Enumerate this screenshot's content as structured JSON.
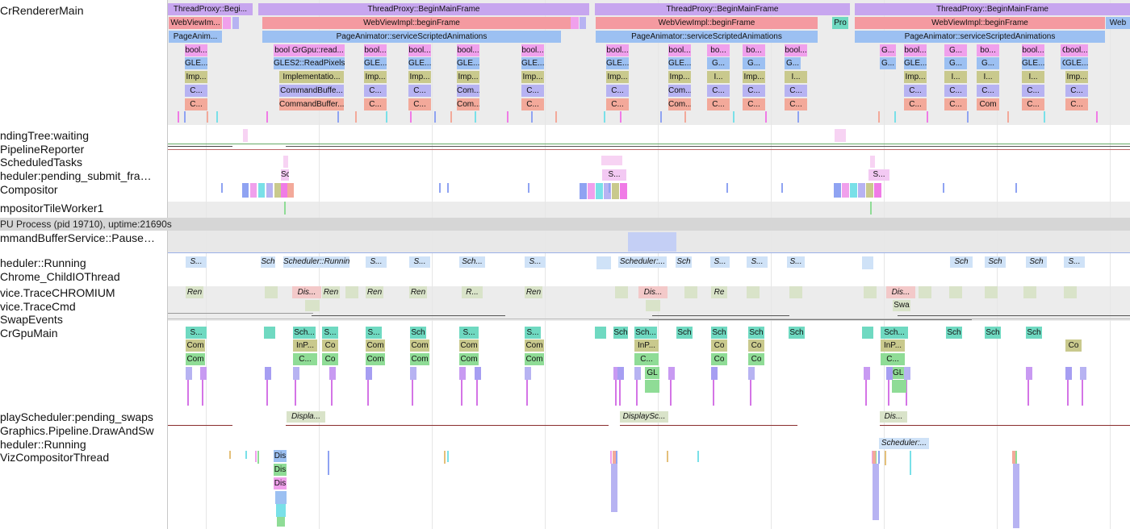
{
  "renderer_labels": [
    "CrRendererMain",
    "ndingTree:waiting",
    "PipelineReporter",
    "ScheduledTasks",
    "heduler:pending_submit_fra…",
    "Compositor",
    "mpositorTileWorker1"
  ],
  "gpu_process_header": "PU Process (pid 19710), uptime:21690s",
  "gpu_labels": [
    "mmandBufferService::Pause…",
    "heduler::Running",
    "Chrome_ChildIOThread",
    "vice.TraceCHROMIUM",
    "vice.TraceCmd",
    "SwapEvents",
    "CrGpuMain",
    "playScheduler:pending_swaps",
    "Graphics.Pipeline.DrawAndSw",
    "heduler::Running",
    "VizCompositorThread"
  ],
  "slices": {
    "main_top": [
      "ThreadProxy::Begi...",
      "ThreadProxy::BeginMainFrame",
      "ThreadProxy::BeginMainFrame",
      "ThreadProxy::BeginMainFrame"
    ],
    "webview": [
      "WebViewIm...",
      "WebViewImpl::beginFrame",
      "WebViewImpl::beginFrame",
      "Pro",
      "WebViewImpl::beginFrame",
      "Web"
    ],
    "animator": [
      "PageAnim...",
      "PageAnimator::serviceScriptedAnimations",
      "PageAnimator::serviceScriptedAnimations",
      "PageAnimator::serviceScriptedAnimations"
    ],
    "row4": [
      "bool...",
      "bool GrGpu::read...",
      "bool...",
      "bool...",
      "bool...",
      "bool...",
      "bool...",
      "bool...",
      "bo...",
      "bo...",
      "bool...",
      "G...",
      "bool...",
      "G...",
      "bo...",
      "bool...",
      "G...",
      "bool..."
    ],
    "row5": [
      "GLE...",
      "GLES2::ReadPixels",
      "GLE...",
      "GLE...",
      "GLE...",
      "GLE...",
      "GLE...",
      "GLE...",
      "G...",
      "G...",
      "G...",
      "G...",
      "GLE...",
      "G...",
      "G...",
      "GLE...",
      "G...",
      "GLE..."
    ],
    "row6": [
      "Imp...",
      "Implementatio...",
      "Imp...",
      "Imp...",
      "Imp...",
      "Imp...",
      "Imp...",
      "Imp...",
      "I...",
      "Imp...",
      "I...",
      "Imp...",
      "I...",
      "I...",
      "I...",
      "Imp..."
    ],
    "row7": [
      "C...",
      "CommandBuffe...",
      "C...",
      "C...",
      "Com...",
      "C...",
      "C...",
      "Com...",
      "C...",
      "C...",
      "C...",
      "C...",
      "C...",
      "C...",
      "C...",
      "C..."
    ],
    "row8": [
      "C...",
      "CommandBuffer...",
      "C...",
      "C...",
      "Com...",
      "C...",
      "C...",
      "Com...",
      "C...",
      "C...",
      "C...",
      "C...",
      "C...",
      "Com",
      "C...",
      "C..."
    ],
    "sched_pend": [
      "Sch",
      "S...",
      "S..."
    ],
    "sched_run": [
      "S...",
      "Sch",
      "Scheduler::Running",
      "S...",
      "S...",
      "Sch...",
      "S...",
      "Scheduler:...",
      "Sch",
      "S...",
      "S...",
      "S...",
      "Sch",
      "Sch",
      "Sch",
      "S..."
    ],
    "trace_chr": [
      "Ren",
      "Dis...",
      "Ren",
      "Ren",
      "Ren",
      "R...",
      "Ren",
      "Dis...",
      "Re",
      "Dis..."
    ],
    "trace_cmd": [
      "Swa"
    ],
    "gpu_main_r1": [
      "S...",
      "Sch...",
      "S...",
      "S...",
      "Sch",
      "S...",
      "S...",
      "Sch",
      "Sch...",
      "Sch",
      "Sch",
      "Sch",
      "Sch",
      "Sch...",
      "Sch",
      "Sch",
      "Sch"
    ],
    "gpu_main_r2": [
      "Com",
      "InP...",
      "Co",
      "Com",
      "Com",
      "Com",
      "Com",
      "InP...",
      "Co",
      "Co",
      "InP...",
      "Co"
    ],
    "gpu_main_r3": [
      "Com",
      "C...",
      "Co",
      "Com",
      "Com",
      "Com",
      "Com",
      "C...",
      "Co",
      "Co",
      "C..."
    ],
    "gpu_main_r4": [
      "GL",
      "GLE"
    ],
    "display_pend": [
      "Displa...",
      "DisplaySc...",
      "Dis..."
    ],
    "viz_sched": [
      "Scheduler:..."
    ],
    "viz": [
      "Dis",
      "Dis",
      "Dis"
    ]
  }
}
